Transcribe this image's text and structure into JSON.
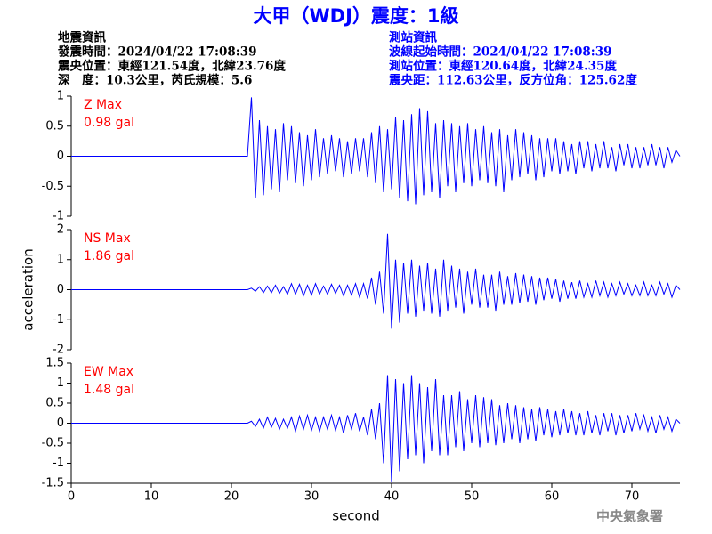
{
  "header": {
    "title": "大甲（WDJ）震度：1級",
    "left": [
      "地震資訊",
      "發震時間：2024/04/22 17:08:39",
      "震央位置：東經121.54度，北緯23.76度",
      "深　度：10.3公里，芮氏規模：5.6"
    ],
    "right": [
      "測站資訊",
      "波線起始時間：2024/04/22 17:08:39",
      "測站位置：東經120.64度，北緯24.35度",
      "震央距：112.63公里，反方位角：125.62度"
    ],
    "footer": "中央氣象署"
  },
  "chart_data": [
    {
      "type": "line",
      "label": "Z Max",
      "max_label": "0.98 gal",
      "color": "#0000ff",
      "label_color": "#ff0000",
      "xlim": [
        0,
        76
      ],
      "ylim": [
        -1,
        1
      ],
      "yticks": [
        -1,
        -0.5,
        0,
        0.5,
        1
      ],
      "x": [
        0,
        5,
        10,
        15,
        20,
        22,
        22.5,
        23,
        23.5,
        24,
        24.5,
        25,
        25.5,
        26,
        26.5,
        27,
        27.5,
        28,
        28.5,
        29,
        29.5,
        30,
        30.5,
        31,
        31.5,
        32,
        32.5,
        33,
        33.5,
        34,
        34.5,
        35,
        35.5,
        36,
        36.5,
        37,
        37.5,
        38,
        38.5,
        39,
        39.5,
        40,
        40.5,
        41,
        41.5,
        42,
        42.5,
        43,
        43.5,
        44,
        44.5,
        45,
        45.5,
        46,
        46.5,
        47,
        47.5,
        48,
        48.5,
        49,
        49.5,
        50,
        50.5,
        51,
        51.5,
        52,
        52.5,
        53,
        53.5,
        54,
        54.5,
        55,
        55.5,
        56,
        56.5,
        57,
        57.5,
        58,
        58.5,
        59,
        59.5,
        60,
        60.5,
        61,
        61.5,
        62,
        62.5,
        63,
        63.5,
        64,
        64.5,
        65,
        65.5,
        66,
        66.5,
        67,
        67.5,
        68,
        68.5,
        69,
        69.5,
        70,
        70.5,
        71,
        71.5,
        72,
        72.5,
        73,
        73.5,
        74,
        74.5,
        75,
        75.5,
        76
      ],
      "values": [
        0,
        0,
        0,
        0,
        0,
        0,
        0.98,
        -0.7,
        0.6,
        -0.65,
        0.5,
        -0.55,
        0.45,
        -0.6,
        0.55,
        -0.4,
        0.5,
        -0.45,
        0.4,
        -0.5,
        0.35,
        -0.4,
        0.45,
        -0.35,
        0.3,
        -0.3,
        0.35,
        -0.25,
        0.3,
        -0.35,
        0.25,
        -0.3,
        0.3,
        -0.25,
        0.3,
        -0.35,
        0.4,
        -0.45,
        0.5,
        -0.6,
        0.45,
        -0.55,
        0.65,
        -0.7,
        0.6,
        -0.75,
        0.7,
        -0.8,
        0.8,
        -0.65,
        0.75,
        -0.6,
        0.55,
        -0.7,
        0.6,
        -0.5,
        0.55,
        -0.6,
        0.5,
        -0.45,
        0.55,
        -0.5,
        0.45,
        -0.4,
        0.5,
        -0.45,
        0.4,
        -0.5,
        0.45,
        -0.6,
        0.35,
        -0.4,
        0.45,
        -0.35,
        0.4,
        -0.3,
        0.35,
        -0.4,
        0.3,
        -0.35,
        0.3,
        -0.25,
        0.3,
        -0.3,
        0.25,
        -0.25,
        0.2,
        -0.3,
        0.25,
        -0.2,
        0.25,
        -0.25,
        0.2,
        -0.2,
        0.25,
        -0.2,
        0.15,
        -0.25,
        0.2,
        -0.15,
        0.2,
        -0.2,
        0.15,
        -0.2,
        0.15,
        -0.15,
        0.2,
        -0.15,
        0.15,
        -0.2,
        0.15,
        -0.1,
        0.1,
        0
      ]
    },
    {
      "type": "line",
      "label": "NS Max",
      "max_label": "1.86 gal",
      "color": "#0000ff",
      "label_color": "#ff0000",
      "ylabel": "acceleration",
      "xlim": [
        0,
        76
      ],
      "ylim": [
        -2,
        2
      ],
      "yticks": [
        -2,
        -1,
        0,
        1,
        2
      ],
      "x": [
        0,
        5,
        10,
        15,
        20,
        22,
        22.5,
        23,
        23.5,
        24,
        24.5,
        25,
        25.5,
        26,
        26.5,
        27,
        27.5,
        28,
        28.5,
        29,
        29.5,
        30,
        30.5,
        31,
        31.5,
        32,
        32.5,
        33,
        33.5,
        34,
        34.5,
        35,
        35.5,
        36,
        36.5,
        37,
        37.5,
        38,
        38.5,
        39,
        39.5,
        40,
        40.5,
        41,
        41.5,
        42,
        42.5,
        43,
        43.5,
        44,
        44.5,
        45,
        45.5,
        46,
        46.5,
        47,
        47.5,
        48,
        48.5,
        49,
        49.5,
        50,
        50.5,
        51,
        51.5,
        52,
        52.5,
        53,
        53.5,
        54,
        54.5,
        55,
        55.5,
        56,
        56.5,
        57,
        57.5,
        58,
        58.5,
        59,
        59.5,
        60,
        60.5,
        61,
        61.5,
        62,
        62.5,
        63,
        63.5,
        64,
        64.5,
        65,
        65.5,
        66,
        66.5,
        67,
        67.5,
        68,
        68.5,
        69,
        69.5,
        70,
        70.5,
        71,
        71.5,
        72,
        72.5,
        73,
        73.5,
        74,
        74.5,
        75,
        75.5,
        76
      ],
      "values": [
        0,
        0,
        0,
        0,
        0,
        0,
        0.05,
        -0.05,
        0.1,
        -0.1,
        0.12,
        -0.1,
        0.15,
        -0.12,
        0.1,
        -0.15,
        0.2,
        -0.15,
        0.18,
        -0.2,
        0.15,
        -0.18,
        0.2,
        -0.15,
        0.12,
        -0.15,
        0.18,
        -0.12,
        0.15,
        -0.2,
        0.15,
        -0.18,
        0.2,
        -0.25,
        0.2,
        -0.3,
        0.4,
        -0.5,
        0.6,
        -0.8,
        1.86,
        -1.3,
        1.0,
        -1.1,
        0.9,
        -0.8,
        1.0,
        -0.9,
        0.8,
        -0.7,
        0.9,
        -0.8,
        0.7,
        -0.9,
        1.0,
        -0.7,
        0.8,
        -0.6,
        0.7,
        -0.8,
        0.6,
        -0.5,
        0.7,
        -0.6,
        0.5,
        -0.6,
        0.5,
        -0.7,
        0.6,
        -0.5,
        0.45,
        -0.5,
        0.55,
        -0.45,
        0.5,
        -0.4,
        0.45,
        -0.5,
        0.4,
        -0.35,
        0.4,
        -0.3,
        0.35,
        -0.4,
        0.3,
        -0.3,
        0.25,
        -0.3,
        0.3,
        -0.25,
        0.2,
        -0.25,
        0.3,
        -0.2,
        0.25,
        -0.25,
        0.2,
        -0.2,
        0.25,
        -0.15,
        0.2,
        -0.2,
        0.15,
        -0.2,
        0.25,
        -0.2,
        0.15,
        -0.2,
        0.25,
        -0.15,
        0.2,
        -0.25,
        0.15,
        0
      ]
    },
    {
      "type": "line",
      "label": "EW Max",
      "max_label": "1.48 gal",
      "color": "#0000ff",
      "label_color": "#ff0000",
      "xlabel": "second",
      "xlim": [
        0,
        76
      ],
      "xticks": [
        0,
        10,
        20,
        30,
        40,
        50,
        60,
        70
      ],
      "ylim": [
        -1.5,
        1.5
      ],
      "yticks": [
        -1.5,
        -1,
        -0.5,
        0,
        0.5,
        1,
        1.5
      ],
      "x": [
        0,
        5,
        10,
        15,
        20,
        22,
        22.5,
        23,
        23.5,
        24,
        24.5,
        25,
        25.5,
        26,
        26.5,
        27,
        27.5,
        28,
        28.5,
        29,
        29.5,
        30,
        30.5,
        31,
        31.5,
        32,
        32.5,
        33,
        33.5,
        34,
        34.5,
        35,
        35.5,
        36,
        36.5,
        37,
        37.5,
        38,
        38.5,
        39,
        39.5,
        40,
        40.5,
        41,
        41.5,
        42,
        42.5,
        43,
        43.5,
        44,
        44.5,
        45,
        45.5,
        46,
        46.5,
        47,
        47.5,
        48,
        48.5,
        49,
        49.5,
        50,
        50.5,
        51,
        51.5,
        52,
        52.5,
        53,
        53.5,
        54,
        54.5,
        55,
        55.5,
        56,
        56.5,
        57,
        57.5,
        58,
        58.5,
        59,
        59.5,
        60,
        60.5,
        61,
        61.5,
        62,
        62.5,
        63,
        63.5,
        64,
        64.5,
        65,
        65.5,
        66,
        66.5,
        67,
        67.5,
        68,
        68.5,
        69,
        69.5,
        70,
        70.5,
        71,
        71.5,
        72,
        72.5,
        73,
        73.5,
        74,
        74.5,
        75,
        75.5,
        76
      ],
      "values": [
        0,
        0,
        0,
        0,
        0,
        0,
        0.05,
        -0.08,
        0.1,
        -0.12,
        0.15,
        -0.1,
        0.12,
        -0.15,
        0.1,
        -0.12,
        0.15,
        -0.2,
        0.18,
        -0.15,
        0.2,
        -0.18,
        0.15,
        -0.2,
        0.15,
        -0.15,
        0.2,
        -0.18,
        0.15,
        -0.25,
        0.2,
        -0.15,
        0.25,
        -0.2,
        0.15,
        -0.3,
        0.35,
        -0.4,
        0.5,
        -1.0,
        1.2,
        -1.48,
        1.1,
        -1.2,
        1.0,
        -0.9,
        1.2,
        -0.8,
        1.0,
        -1.0,
        0.9,
        -0.7,
        1.1,
        -0.8,
        0.7,
        -0.8,
        0.7,
        -0.6,
        0.8,
        -0.7,
        0.6,
        -0.5,
        0.7,
        -0.6,
        0.65,
        -0.5,
        0.6,
        -0.55,
        0.45,
        -0.5,
        0.5,
        -0.4,
        0.45,
        -0.5,
        0.4,
        -0.4,
        0.35,
        -0.45,
        0.4,
        -0.3,
        0.35,
        -0.35,
        0.3,
        -0.3,
        0.35,
        -0.25,
        0.3,
        -0.3,
        0.25,
        -0.3,
        0.3,
        -0.25,
        0.2,
        -0.3,
        0.25,
        -0.2,
        0.25,
        -0.3,
        0.2,
        -0.25,
        0.2,
        -0.2,
        0.25,
        -0.15,
        0.2,
        -0.2,
        0.15,
        -0.25,
        0.2,
        -0.15,
        0.15,
        -0.2,
        0.1,
        0
      ]
    }
  ]
}
